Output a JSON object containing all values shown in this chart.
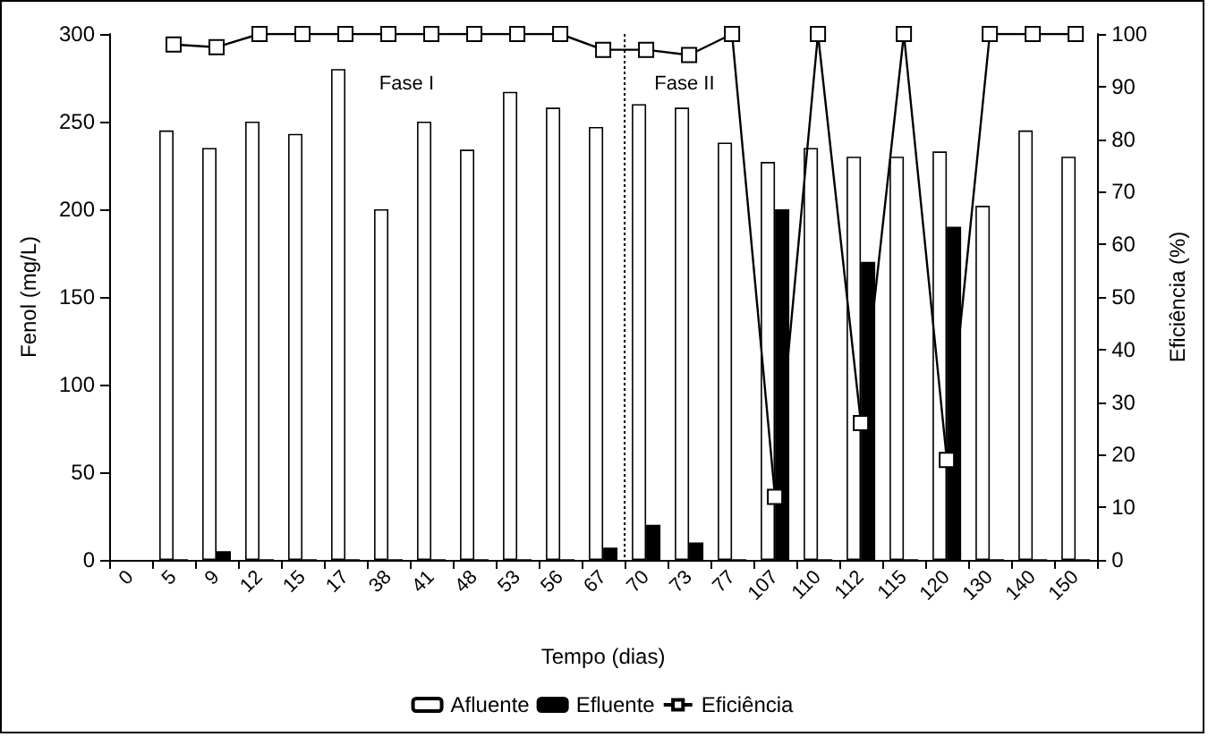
{
  "chart_data": {
    "type": "bar",
    "xlabel": "Tempo (dias)",
    "ylabel": "Fenol (mg/L)",
    "y2label": "Eficiência (%)",
    "categories": [
      "0",
      "5",
      "9",
      "12",
      "15",
      "17",
      "38",
      "41",
      "48",
      "53",
      "56",
      "67",
      "70",
      "73",
      "77",
      "107",
      "110",
      "112",
      "115",
      "120",
      "130",
      "140",
      "150"
    ],
    "series": [
      {
        "name": "Afluente",
        "color": "#ffffff",
        "values": [
          null,
          245,
          235,
          250,
          243,
          280,
          200,
          250,
          234,
          267,
          258,
          247,
          260,
          258,
          238,
          227,
          235,
          230,
          230,
          233,
          202,
          245,
          230
        ]
      },
      {
        "name": "Efluente",
        "color": "#000000",
        "values": [
          null,
          0,
          5,
          0,
          0,
          0,
          0,
          0,
          0,
          0,
          0,
          7,
          20,
          10,
          0,
          200,
          0,
          170,
          0,
          190,
          0,
          0,
          0
        ]
      },
      {
        "name": "Eficiência",
        "type": "line",
        "axis": "y2",
        "color": "#000000",
        "marker": "square",
        "values": [
          null,
          98,
          97.5,
          100,
          100,
          100,
          100,
          100,
          100,
          100,
          100,
          97,
          97,
          96,
          100,
          12,
          100,
          26,
          100,
          19,
          100,
          100,
          100
        ]
      }
    ],
    "ylim": [
      0,
      300
    ],
    "yticks": [
      0,
      50,
      100,
      150,
      200,
      250,
      300
    ],
    "y2lim": [
      0,
      100
    ],
    "y2ticks": [
      0,
      10,
      20,
      30,
      40,
      50,
      60,
      70,
      80,
      90,
      100
    ],
    "annotations": [
      "Fase I",
      "Fase II"
    ],
    "grid": false,
    "legend": "bottom"
  }
}
